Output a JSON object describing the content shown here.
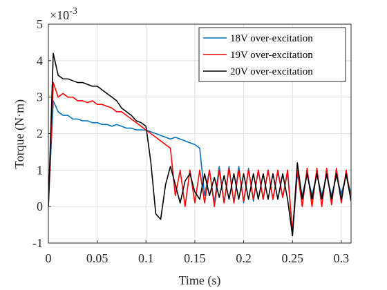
{
  "chart_data": {
    "type": "line",
    "x_label": "Time (s)",
    "y_label": "Torque (N·m)",
    "y_multiplier": "×10",
    "y_exponent": "-3",
    "xlim": [
      0,
      0.31
    ],
    "xticks": [
      0,
      0.05,
      0.1,
      0.15,
      0.2,
      0.25,
      0.3
    ],
    "ylim": [
      -1,
      5
    ],
    "yticks": [
      -1,
      0,
      1,
      2,
      3,
      4,
      5
    ],
    "grid": true,
    "legend": "upper right",
    "x": [
      0,
      0.005,
      0.01,
      0.015,
      0.02,
      0.025,
      0.03,
      0.035,
      0.04,
      0.045,
      0.05,
      0.055,
      0.06,
      0.065,
      0.07,
      0.075,
      0.08,
      0.085,
      0.09,
      0.095,
      0.1,
      0.105,
      0.11,
      0.115,
      0.12,
      0.125,
      0.13,
      0.135,
      0.14,
      0.145,
      0.15,
      0.155,
      0.16,
      0.165,
      0.17,
      0.175,
      0.18,
      0.185,
      0.19,
      0.195,
      0.2,
      0.205,
      0.21,
      0.215,
      0.22,
      0.225,
      0.23,
      0.235,
      0.24,
      0.245,
      0.25,
      0.255,
      0.26,
      0.265,
      0.27,
      0.275,
      0.28,
      0.285,
      0.29,
      0.295,
      0.3,
      0.305,
      0.31
    ],
    "series": [
      {
        "name": "18V over-excitation",
        "color": "#0072bd",
        "values": [
          0,
          2.9,
          2.6,
          2.5,
          2.5,
          2.4,
          2.4,
          2.35,
          2.35,
          2.3,
          2.3,
          2.25,
          2.25,
          2.2,
          2.25,
          2.2,
          2.15,
          2.15,
          2.1,
          2.1,
          2.1,
          2.05,
          2.0,
          1.95,
          1.9,
          1.85,
          1.9,
          1.85,
          1.8,
          1.75,
          1.7,
          1.6,
          0.3,
          1.0,
          0.1,
          1.1,
          0.1,
          1.1,
          0.1,
          1.1,
          0.1,
          1.05,
          0.15,
          1.0,
          0.2,
          1.0,
          0.2,
          0.95,
          0.25,
          0.95,
          -0.8,
          0.9,
          0.3,
          0.9,
          0.3,
          0.9,
          0.3,
          0.85,
          0.3,
          0.85,
          0.35,
          0.85,
          0.35
        ]
      },
      {
        "name": "19V over-excitation",
        "color": "#ff0000",
        "values": [
          0,
          3.4,
          3.0,
          3.1,
          3.0,
          3.0,
          2.9,
          2.9,
          2.85,
          2.9,
          2.8,
          2.8,
          2.75,
          2.7,
          2.6,
          2.6,
          2.5,
          2.4,
          2.3,
          2.2,
          2.1,
          2.0,
          1.9,
          1.8,
          1.7,
          1.6,
          0.3,
          1.0,
          0.0,
          1.0,
          0.1,
          1.0,
          0.1,
          1.0,
          0.0,
          1.0,
          0.1,
          1.05,
          0.1,
          1.0,
          0.15,
          1.0,
          0.2,
          1.0,
          0.2,
          1.0,
          0.2,
          1.0,
          0.25,
          1.0,
          -0.7,
          1.0,
          0.0,
          1.05,
          0.0,
          1.05,
          0.0,
          1.05,
          0.05,
          1.05,
          0.1,
          1.0,
          0.15
        ]
      },
      {
        "name": "20V over-excitation",
        "color": "#000000",
        "values": [
          0,
          4.2,
          3.6,
          3.5,
          3.5,
          3.45,
          3.4,
          3.4,
          3.35,
          3.3,
          3.3,
          3.2,
          3.1,
          3.0,
          2.9,
          2.7,
          2.6,
          2.5,
          2.35,
          2.3,
          2.2,
          1.2,
          -0.2,
          -0.35,
          0.6,
          1.1,
          0.6,
          0.1,
          0.7,
          0.9,
          0.4,
          0.2,
          0.9,
          0.3,
          0.8,
          0.25,
          0.85,
          0.2,
          0.9,
          0.2,
          0.9,
          0.2,
          0.9,
          0.2,
          0.9,
          0.2,
          0.9,
          0.2,
          0.9,
          0.2,
          -0.8,
          1.2,
          0.2,
          0.9,
          0.2,
          0.9,
          0.2,
          0.9,
          0.2,
          0.9,
          0.2,
          0.9,
          0.15
        ]
      }
    ]
  }
}
